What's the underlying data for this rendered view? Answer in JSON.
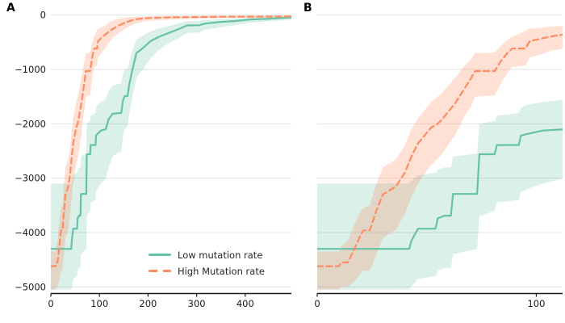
{
  "figure": {
    "panel_a_label": "A",
    "panel_b_label": "B"
  },
  "chart_data": {
    "type": "line",
    "title": "",
    "xlabel": "",
    "ylabel": "",
    "grid": "horizontal-only",
    "colors": {
      "grid": "#e2e2e2",
      "axis": "#1a1a1a",
      "tick_text": "#1a1a1a",
      "background": "#ffffff"
    },
    "panels": [
      {
        "id": "a",
        "label": "A",
        "xlim": [
          0,
          495
        ],
        "ylim": [
          -5100,
          70
        ],
        "xticks": [
          0,
          100,
          200,
          300,
          400
        ],
        "xticklabels": [
          "0",
          "100",
          "200",
          "300",
          "400"
        ],
        "yticks": [
          0,
          -1000,
          -2000,
          -3000,
          -4000,
          -5000
        ],
        "yticklabels": [
          "0",
          "−1000",
          "−2000",
          "−3000",
          "−4000",
          "−5000"
        ],
        "show_ytick_labels": true
      },
      {
        "id": "b",
        "label": "B",
        "xlim": [
          0,
          112
        ],
        "ylim": [
          -5100,
          70
        ],
        "xticks": [
          0,
          100
        ],
        "xticklabels": [
          "0",
          "100"
        ],
        "yticks": [
          0,
          -1000,
          -2000,
          -3000,
          -4000,
          -5000
        ],
        "yticklabels": [],
        "show_ytick_labels": false
      }
    ],
    "series": [
      {
        "name": "Low mutation rate",
        "color": "#66c2a5",
        "style": "solid",
        "band_opacity": 0.24,
        "points": [
          [
            0,
            -4300,
            -5050,
            -3100
          ],
          [
            42,
            -4300,
            -5050,
            -3100
          ],
          [
            43,
            -4150,
            -5000,
            -3050
          ],
          [
            46,
            -3930,
            -4850,
            -2950
          ],
          [
            54,
            -3930,
            -4800,
            -2900
          ],
          [
            55,
            -3740,
            -4700,
            -2850
          ],
          [
            58,
            -3690,
            -4650,
            -2800
          ],
          [
            61,
            -3690,
            -4650,
            -2800
          ],
          [
            62,
            -3290,
            -4400,
            -2600
          ],
          [
            73,
            -3290,
            -4300,
            -2550
          ],
          [
            74,
            -2560,
            -3700,
            -2000
          ],
          [
            81,
            -2560,
            -3600,
            -1950
          ],
          [
            82,
            -2390,
            -3450,
            -1850
          ],
          [
            92,
            -2390,
            -3400,
            -1800
          ],
          [
            93,
            -2215,
            -3250,
            -1700
          ],
          [
            96,
            -2185,
            -3200,
            -1650
          ],
          [
            103,
            -2125,
            -3100,
            -1600
          ],
          [
            113,
            -2100,
            -3000,
            -1550
          ],
          [
            119,
            -1915,
            -2800,
            -1400
          ],
          [
            127,
            -1815,
            -2600,
            -1300
          ],
          [
            145,
            -1800,
            -2500,
            -1250
          ],
          [
            148,
            -1590,
            -2250,
            -1100
          ],
          [
            152,
            -1490,
            -2100,
            -1000
          ],
          [
            158,
            -1490,
            -2050,
            -1000
          ],
          [
            161,
            -1295,
            -1850,
            -870
          ],
          [
            168,
            -1000,
            -1500,
            -650
          ],
          [
            176,
            -700,
            -1150,
            -450
          ],
          [
            189,
            -610,
            -1000,
            -380
          ],
          [
            205,
            -480,
            -800,
            -300
          ],
          [
            221,
            -405,
            -650,
            -250
          ],
          [
            242,
            -330,
            -520,
            -200
          ],
          [
            264,
            -256,
            -420,
            -150
          ],
          [
            280,
            -190,
            -330,
            -110
          ],
          [
            306,
            -185,
            -320,
            -105
          ],
          [
            318,
            -155,
            -270,
            -90
          ],
          [
            334,
            -140,
            -250,
            -85
          ],
          [
            350,
            -125,
            -220,
            -75
          ],
          [
            377,
            -110,
            -190,
            -65
          ],
          [
            410,
            -80,
            -140,
            -50
          ],
          [
            442,
            -70,
            -120,
            -45
          ],
          [
            495,
            -45,
            -85,
            -28
          ]
        ]
      },
      {
        "name": "High Mutation rate",
        "color": "#fc8d62",
        "style": "dashed",
        "band_opacity": 0.27,
        "points": [
          [
            0,
            -4620,
            -5050,
            -4350
          ],
          [
            10,
            -4620,
            -5050,
            -4350
          ],
          [
            11,
            -4550,
            -5000,
            -4250
          ],
          [
            14,
            -4550,
            -5000,
            -4150
          ],
          [
            17,
            -4300,
            -4900,
            -3850
          ],
          [
            20,
            -4030,
            -4750,
            -3600
          ],
          [
            21,
            -3960,
            -4700,
            -3550
          ],
          [
            24,
            -3960,
            -4700,
            -3500
          ],
          [
            27,
            -3600,
            -4400,
            -3100
          ],
          [
            30,
            -3300,
            -4100,
            -2800
          ],
          [
            36,
            -3150,
            -3950,
            -2650
          ],
          [
            40,
            -2900,
            -3650,
            -2400
          ],
          [
            43,
            -2600,
            -3350,
            -2100
          ],
          [
            46,
            -2360,
            -3100,
            -1900
          ],
          [
            52,
            -2070,
            -2750,
            -1600
          ],
          [
            55,
            -2000,
            -2650,
            -1500
          ],
          [
            57,
            -1920,
            -2550,
            -1430
          ],
          [
            63,
            -1620,
            -2200,
            -1150
          ],
          [
            68,
            -1300,
            -1800,
            -900
          ],
          [
            70,
            -1180,
            -1700,
            -820
          ],
          [
            72,
            -1030,
            -1500,
            -700
          ],
          [
            81,
            -1030,
            -1480,
            -690
          ],
          [
            84,
            -835,
            -1250,
            -560
          ],
          [
            87,
            -690,
            -1050,
            -450
          ],
          [
            89,
            -615,
            -950,
            -400
          ],
          [
            95,
            -615,
            -930,
            -290
          ],
          [
            97,
            -480,
            -780,
            -250
          ],
          [
            102,
            -435,
            -720,
            -230
          ],
          [
            107,
            -390,
            -650,
            -210
          ],
          [
            112,
            -360,
            -620,
            -200
          ],
          [
            120,
            -300,
            -500,
            -130
          ],
          [
            130,
            -240,
            -400,
            -90
          ],
          [
            140,
            -190,
            -330,
            -70
          ],
          [
            155,
            -130,
            -240,
            -45
          ],
          [
            172,
            -80,
            -160,
            -30
          ],
          [
            190,
            -60,
            -120,
            -25
          ],
          [
            210,
            -50,
            -100,
            -20
          ],
          [
            250,
            -40,
            -80,
            -15
          ],
          [
            300,
            -35,
            -65,
            -12
          ],
          [
            350,
            -30,
            -55,
            -10
          ],
          [
            420,
            -28,
            -50,
            -9
          ],
          [
            495,
            -25,
            -45,
            -8
          ]
        ]
      }
    ],
    "legend": {
      "position": "lower right of panel A",
      "items": [
        {
          "label": "Low mutation rate",
          "series": 0
        },
        {
          "label": "High Mutation rate",
          "series": 1
        }
      ]
    }
  }
}
